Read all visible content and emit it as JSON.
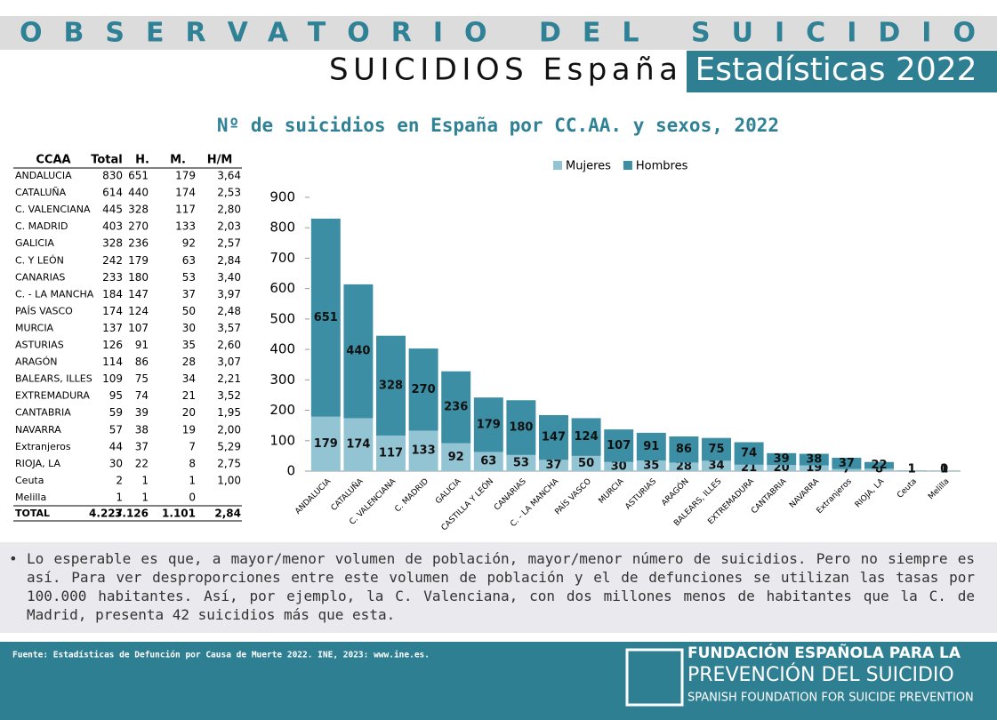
{
  "header": {
    "band": "OBSERVATORIO DEL SUICIDIO",
    "subtitle": "SUICIDIOS España",
    "badge": "Estadísticas 2022"
  },
  "table": {
    "columns": [
      "CCAA",
      "Total",
      "H.",
      "M.",
      "H/M"
    ],
    "rows": [
      [
        "ANDALUCIA",
        "830",
        "651",
        "179",
        "3,64"
      ],
      [
        "CATALUÑA",
        "614",
        "440",
        "174",
        "2,53"
      ],
      [
        "C. VALENCIANA",
        "445",
        "328",
        "117",
        "2,80"
      ],
      [
        "C. MADRID",
        "403",
        "270",
        "133",
        "2,03"
      ],
      [
        "GALICIA",
        "328",
        "236",
        "92",
        "2,57"
      ],
      [
        "C. Y LEÓN",
        "242",
        "179",
        "63",
        "2,84"
      ],
      [
        "CANARIAS",
        "233",
        "180",
        "53",
        "3,40"
      ],
      [
        "C. - LA MANCHA",
        "184",
        "147",
        "37",
        "3,97"
      ],
      [
        "PAÍS VASCO",
        "174",
        "124",
        "50",
        "2,48"
      ],
      [
        "MURCIA",
        "137",
        "107",
        "30",
        "3,57"
      ],
      [
        "ASTURIAS",
        "126",
        "91",
        "35",
        "2,60"
      ],
      [
        "ARAGÓN",
        "114",
        "86",
        "28",
        "3,07"
      ],
      [
        "BALEARS, ILLES",
        "109",
        "75",
        "34",
        "2,21"
      ],
      [
        "EXTREMADURA",
        "95",
        "74",
        "21",
        "3,52"
      ],
      [
        "CANTABRIA",
        "59",
        "39",
        "20",
        "1,95"
      ],
      [
        "NAVARRA",
        "57",
        "38",
        "19",
        "2,00"
      ],
      [
        "Extranjeros",
        "44",
        "37",
        "7",
        "5,29"
      ],
      [
        "RIOJA, LA",
        "30",
        "22",
        "8",
        "2,75"
      ],
      [
        "Ceuta",
        "2",
        "1",
        "1",
        "1,00"
      ],
      [
        "Melilla",
        "1",
        "1",
        "0",
        ""
      ]
    ],
    "total": [
      "TOTAL",
      "4.227",
      "3.126",
      "1.101",
      "2,84"
    ]
  },
  "chart_data": {
    "type": "stacked_bar",
    "title": "Nº de suicidios en España por CC.AA. y sexos, 2022",
    "categories": [
      "ANDALUCIA",
      "CATALUÑA",
      "C. VALENCIANA",
      "C. MADRID",
      "GALICIA",
      "CASTILLA Y LEÓN",
      "CANARIAS",
      "C. - LA MANCHA",
      "PAÍS VASCO",
      "MURCIA",
      "ASTURIAS",
      "ARAGÓN",
      "BALEARS, ILLES",
      "EXTREMADURA",
      "CANTABRIA",
      "NAVARRA",
      "Extranjeros",
      "RIOJA, LA",
      "Ceuta",
      "Melilla"
    ],
    "series": [
      {
        "name": "Mujeres",
        "color": "#93c4d4",
        "values": [
          179,
          174,
          117,
          133,
          92,
          63,
          53,
          37,
          50,
          30,
          35,
          28,
          34,
          21,
          20,
          19,
          7,
          8,
          1,
          0
        ]
      },
      {
        "name": "Hombres",
        "color": "#3b8ea3",
        "values": [
          651,
          440,
          328,
          270,
          236,
          179,
          180,
          147,
          124,
          107,
          91,
          86,
          75,
          74,
          39,
          38,
          37,
          22,
          1,
          1
        ]
      }
    ],
    "ylim": [
      0,
      900
    ],
    "yticks": [
      0,
      100,
      200,
      300,
      400,
      500,
      600,
      700,
      800,
      900
    ],
    "legend": "top"
  },
  "note": "Lo esperable es que, a mayor/menor volumen de población, mayor/menor número de suicidios. Pero no siempre es así. Para ver desproporciones entre este volumen de población y el de defunciones se utilizan las tasas por 100.000 habitantes. Así, por ejemplo, la C. Valenciana, con dos millones menos de habitantes que la C. de Madrid, presenta 42 suicidios más que esta.",
  "footer": {
    "source": "Fuente: Estadísticas de Defunción por Causa de Muerte 2022. INE, 2023: www.ine.es.",
    "logo": [
      "FUNDACIÓN ESPAÑOLA PARA LA",
      "PREVENCIÓN DEL SUICIDIO",
      "SPANISH FOUNDATION FOR SUICIDE PREVENTION"
    ]
  }
}
